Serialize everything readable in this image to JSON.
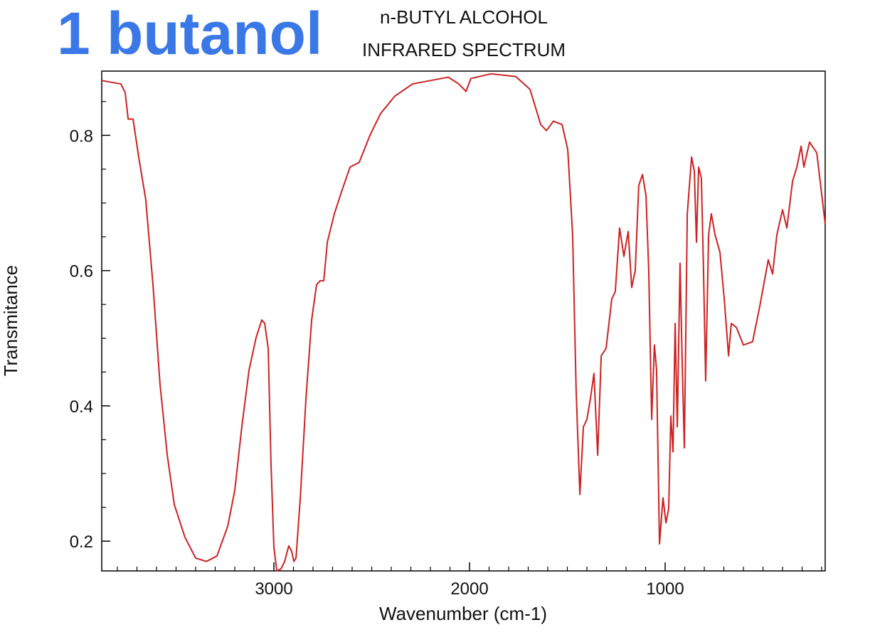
{
  "chart_data": {
    "type": "line",
    "title": "1 butanol",
    "subtitle": [
      "n-BUTYL ALCOHOL",
      "INFRARED SPECTRUM"
    ],
    "x_label": "Wavenumber (cm-1)",
    "y_label": "Transmitance",
    "color": "#cc2222",
    "title_color": "#3b78e7",
    "xlim": [
      3880,
      182
    ],
    "ylim": [
      0.156,
      0.895
    ],
    "xticks": [
      3000,
      2000,
      1000
    ],
    "yticks": [
      0.2,
      0.4,
      0.6,
      0.8
    ],
    "xminorticks": [
      3800,
      3700,
      3600,
      3500,
      3400,
      3300,
      3200,
      3100,
      2900,
      2800,
      2700,
      2600,
      2500,
      2400,
      2300,
      2200,
      2100,
      1900,
      1800,
      1700,
      1600,
      1500,
      1400,
      1300,
      1200,
      1100,
      900,
      800,
      700,
      600,
      500,
      400,
      300,
      200
    ],
    "yminorticks": [
      0.25,
      0.3,
      0.35,
      0.45,
      0.5,
      0.55,
      0.65,
      0.7,
      0.75,
      0.85
    ],
    "x": [
      3880,
      3782,
      3760,
      3745,
      3720,
      3691,
      3655,
      3618,
      3582,
      3545,
      3509,
      3455,
      3400,
      3345,
      3291,
      3236,
      3200,
      3164,
      3127,
      3091,
      3062,
      3047,
      3029,
      3015,
      3000,
      2985,
      2964,
      2945,
      2924,
      2909,
      2898,
      2887,
      2865,
      2836,
      2807,
      2782,
      2764,
      2745,
      2727,
      2691,
      2655,
      2611,
      2564,
      2509,
      2455,
      2382,
      2291,
      2200,
      2109,
      2055,
      2018,
      1993,
      1891,
      1764,
      1691,
      1636,
      1607,
      1571,
      1527,
      1498,
      1473,
      1455,
      1436,
      1418,
      1400,
      1382,
      1364,
      1345,
      1327,
      1302,
      1273,
      1255,
      1233,
      1211,
      1189,
      1171,
      1153,
      1135,
      1116,
      1098,
      1084,
      1069,
      1055,
      1044,
      1029,
      1011,
      996,
      982,
      971,
      960,
      949,
      938,
      924,
      913,
      902,
      887,
      865,
      851,
      840,
      829,
      815,
      804,
      793,
      778,
      764,
      745,
      720,
      698,
      676,
      662,
      636,
      600,
      553,
      516,
      473,
      451,
      429,
      400,
      378,
      349,
      327,
      305,
      291,
      262,
      225,
      182
    ],
    "y": [
      0.881,
      0.876,
      0.863,
      0.824,
      0.824,
      0.768,
      0.705,
      0.579,
      0.432,
      0.327,
      0.254,
      0.206,
      0.175,
      0.17,
      0.178,
      0.222,
      0.275,
      0.369,
      0.453,
      0.501,
      0.527,
      0.522,
      0.485,
      0.317,
      0.191,
      0.156,
      0.159,
      0.17,
      0.193,
      0.185,
      0.17,
      0.175,
      0.264,
      0.411,
      0.527,
      0.579,
      0.585,
      0.585,
      0.642,
      0.684,
      0.716,
      0.753,
      0.76,
      0.8,
      0.832,
      0.858,
      0.876,
      0.881,
      0.886,
      0.876,
      0.865,
      0.884,
      0.891,
      0.887,
      0.868,
      0.816,
      0.807,
      0.821,
      0.816,
      0.779,
      0.653,
      0.422,
      0.269,
      0.369,
      0.38,
      0.411,
      0.448,
      0.327,
      0.474,
      0.485,
      0.558,
      0.569,
      0.663,
      0.621,
      0.658,
      0.575,
      0.6,
      0.726,
      0.742,
      0.711,
      0.6,
      0.38,
      0.49,
      0.453,
      0.196,
      0.264,
      0.227,
      0.248,
      0.385,
      0.332,
      0.522,
      0.369,
      0.611,
      0.464,
      0.338,
      0.684,
      0.768,
      0.747,
      0.642,
      0.753,
      0.737,
      0.6,
      0.437,
      0.653,
      0.684,
      0.653,
      0.627,
      0.558,
      0.474,
      0.522,
      0.516,
      0.49,
      0.495,
      0.548,
      0.616,
      0.595,
      0.653,
      0.69,
      0.663,
      0.732,
      0.753,
      0.784,
      0.753,
      0.79,
      0.774,
      0.669
    ]
  }
}
